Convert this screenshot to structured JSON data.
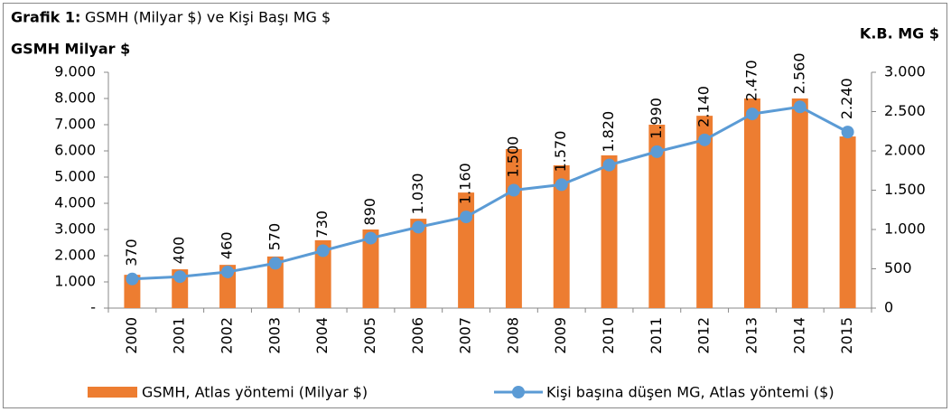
{
  "chart_data": {
    "type": "bar_line",
    "title_label": "Grafik 1:",
    "title": "GSMH (Milyar $) ve Kişi Başı MG $",
    "y_label": "GSMH  Milyar $",
    "y2_label": "K.B. MG $",
    "categories": [
      "2000",
      "2001",
      "2002",
      "2003",
      "2004",
      "2005",
      "2006",
      "2007",
      "2008",
      "2009",
      "2010",
      "2011",
      "2012",
      "2013",
      "2014",
      "2015"
    ],
    "series": [
      {
        "name": "GSMH, Atlas yöntemi (Milyar $)",
        "type": "bar",
        "color": "#ed7d31",
        "values": [
          1270,
          1480,
          1650,
          1970,
          2590,
          3000,
          3410,
          4410,
          6070,
          5450,
          5830,
          7000,
          7340,
          8000,
          8000,
          6550
        ]
      },
      {
        "name": "Kişi başına düşen MG, Atlas yöntemi ($)",
        "type": "line",
        "axis": "y2",
        "color": "#5b9bd5",
        "values": [
          370,
          400,
          460,
          570,
          730,
          890,
          1030,
          1160,
          1500,
          1570,
          1820,
          1990,
          2140,
          2470,
          2560,
          2240
        ],
        "value_labels": [
          "370",
          "400",
          "460",
          "570",
          "730",
          "890",
          "1.030",
          "1.160",
          "1.500",
          "1.570",
          "1.820",
          "1.990",
          "2.140",
          "2.470",
          "2.560",
          "2.240"
        ]
      }
    ],
    "ylim": [
      0,
      9000
    ],
    "yticks": [
      {
        "value": 0,
        "label": "-"
      },
      {
        "value": 1000,
        "label": "1.000"
      },
      {
        "value": 2000,
        "label": "2.000"
      },
      {
        "value": 3000,
        "label": "3.000"
      },
      {
        "value": 4000,
        "label": "4.000"
      },
      {
        "value": 5000,
        "label": "5.000"
      },
      {
        "value": 6000,
        "label": "6.000"
      },
      {
        "value": 7000,
        "label": "7.000"
      },
      {
        "value": 8000,
        "label": "8.000"
      },
      {
        "value": 9000,
        "label": "9.000"
      }
    ],
    "y2lim": [
      0,
      3000
    ],
    "y2ticks": [
      0,
      500,
      {
        "value": 1000,
        "label": "1.000"
      },
      {
        "value": 1500,
        "label": "1.500"
      },
      {
        "value": 2000,
        "label": "2.000"
      },
      {
        "value": 2500,
        "label": "2.500"
      },
      {
        "value": 3000,
        "label": "3.000"
      }
    ],
    "grid": false
  }
}
